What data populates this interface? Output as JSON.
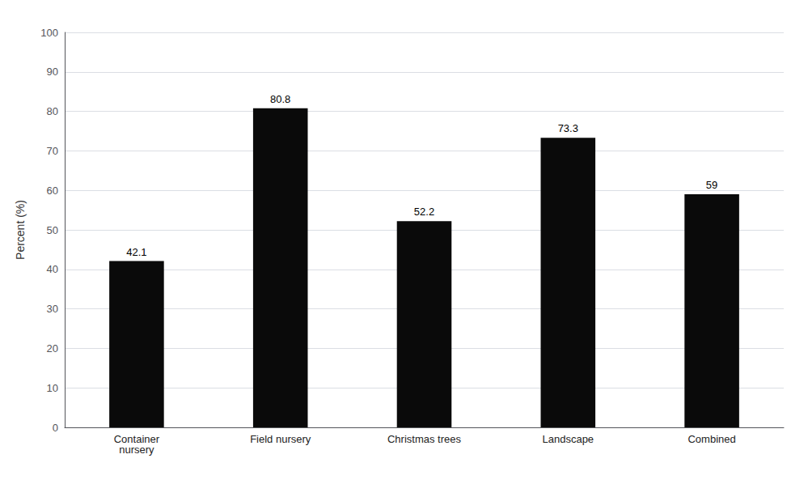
{
  "chart_data": {
    "type": "bar",
    "categories": [
      "Container\nnursery",
      "Field nursery",
      "Christmas trees",
      "Landscape",
      "Combined"
    ],
    "values": [
      42.1,
      80.8,
      52.2,
      73.3,
      59
    ],
    "color": "#0a0a0a",
    "ylabel": "Percent (%)",
    "ylim": [
      0,
      100
    ],
    "yticks": [
      0,
      10,
      20,
      30,
      40,
      50,
      60,
      70,
      80,
      90,
      100
    ],
    "grid": true,
    "data_labels": true
  }
}
